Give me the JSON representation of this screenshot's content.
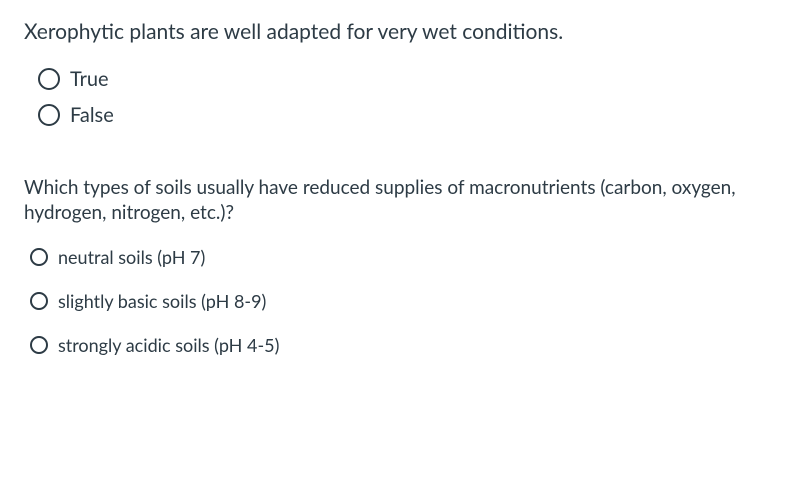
{
  "colors": {
    "text": "#2d3b45",
    "bg": "#ffffff",
    "radio_border": "#2d3b45"
  },
  "q1": {
    "stem": "Xerophytic plants are well adapted for very wet conditions.",
    "stem_fontsize": 21,
    "options": [
      {
        "label": "True"
      },
      {
        "label": "False"
      }
    ],
    "option_fontsize": 20,
    "radio_size": 22
  },
  "q2": {
    "stem": "Which types of soils usually have reduced supplies of macronutrients (carbon, oxygen, hydrogen, nitrogen, etc.)?",
    "stem_fontsize": 19,
    "options": [
      {
        "label": "neutral soils (pH 7)"
      },
      {
        "label": "slightly basic soils (pH 8-9)"
      },
      {
        "label": "strongly acidic soils (pH 4-5)"
      }
    ],
    "option_fontsize": 18,
    "radio_size": 18
  }
}
